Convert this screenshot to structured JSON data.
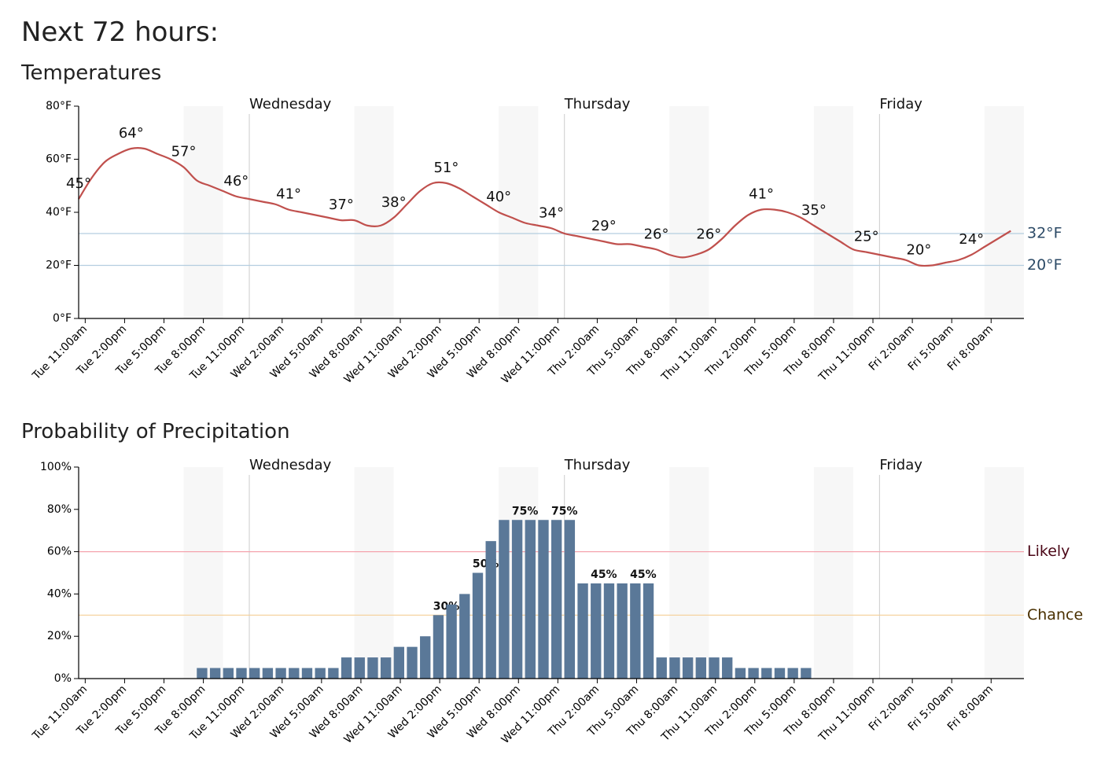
{
  "title": "Next 72 hours:",
  "chart_data": [
    {
      "type": "line",
      "title": "Temperatures",
      "xlim": [
        0,
        72
      ],
      "xticks": [
        {
          "value": 0,
          "label": "Tue 11:00am"
        },
        {
          "value": 3,
          "label": "Tue 2:00pm"
        },
        {
          "value": 6,
          "label": "Tue 5:00pm"
        },
        {
          "value": 9,
          "label": "Tue 8:00pm"
        },
        {
          "value": 12,
          "label": "Tue 11:00pm"
        },
        {
          "value": 15,
          "label": "Wed 2:00am"
        },
        {
          "value": 18,
          "label": "Wed 5:00am"
        },
        {
          "value": 21,
          "label": "Wed 8:00am"
        },
        {
          "value": 24,
          "label": "Wed 11:00am"
        },
        {
          "value": 27,
          "label": "Wed 2:00pm"
        },
        {
          "value": 30,
          "label": "Wed 5:00pm"
        },
        {
          "value": 33,
          "label": "Wed 8:00pm"
        },
        {
          "value": 36,
          "label": "Wed 11:00pm"
        },
        {
          "value": 39,
          "label": "Thu 2:00am"
        },
        {
          "value": 42,
          "label": "Thu 5:00am"
        },
        {
          "value": 45,
          "label": "Thu 8:00am"
        },
        {
          "value": 48,
          "label": "Thu 11:00am"
        },
        {
          "value": 51,
          "label": "Thu 2:00pm"
        },
        {
          "value": 54,
          "label": "Thu 5:00pm"
        },
        {
          "value": 57,
          "label": "Thu 8:00pm"
        },
        {
          "value": 60,
          "label": "Thu 11:00pm"
        },
        {
          "value": 63,
          "label": "Fri 2:00am"
        },
        {
          "value": 66,
          "label": "Fri 5:00am"
        },
        {
          "value": 69,
          "label": "Fri 8:00am"
        }
      ],
      "ylim": [
        0,
        80
      ],
      "yticks": [
        {
          "value": 0,
          "label": "0°F"
        },
        {
          "value": 20,
          "label": "20°F"
        },
        {
          "value": 40,
          "label": "40°F"
        },
        {
          "value": 60,
          "label": "60°F"
        },
        {
          "value": 80,
          "label": "80°F"
        }
      ],
      "days": [
        {
          "value": 13,
          "label": "Wednesday"
        },
        {
          "value": 37,
          "label": "Thursday"
        },
        {
          "value": 61,
          "label": "Friday"
        }
      ],
      "shaded": [
        [
          8,
          11
        ],
        [
          21,
          24
        ],
        [
          32,
          35
        ],
        [
          45,
          48
        ],
        [
          56,
          59
        ],
        [
          69,
          72
        ]
      ],
      "reference_lines": [
        {
          "value": 32,
          "label": "32°F",
          "color": "#b4cde0",
          "text_color": "#2c4a66"
        },
        {
          "value": 20,
          "label": "20°F",
          "color": "#b4cde0",
          "text_color": "#2c4a66"
        }
      ],
      "color": "#c0504d",
      "x": [
        0,
        1,
        2,
        3,
        4,
        5,
        6,
        7,
        8,
        9,
        10,
        11,
        12,
        13,
        14,
        15,
        16,
        17,
        18,
        19,
        20,
        21,
        22,
        23,
        24,
        25,
        26,
        27,
        28,
        29,
        30,
        31,
        32,
        33,
        34,
        35,
        36,
        37,
        38,
        39,
        40,
        41,
        42,
        43,
        44,
        45,
        46,
        47,
        48,
        49,
        50,
        51,
        52,
        53,
        54,
        55,
        56,
        57,
        58,
        59,
        60,
        61,
        62,
        63,
        64,
        65,
        66,
        67,
        68,
        69,
        70,
        71
      ],
      "values": [
        45,
        53,
        59,
        62,
        64,
        64,
        62,
        60,
        57,
        52,
        50,
        48,
        46,
        45,
        44,
        43,
        41,
        40,
        39,
        38,
        37,
        37,
        35,
        35,
        38,
        43,
        48,
        51,
        51,
        49,
        46,
        43,
        40,
        38,
        36,
        35,
        34,
        32,
        31,
        30,
        29,
        28,
        28,
        27,
        26,
        24,
        23,
        24,
        26,
        30,
        35,
        39,
        41,
        41,
        40,
        38,
        35,
        32,
        29,
        26,
        25,
        24,
        23,
        22,
        20,
        20,
        21,
        22,
        24,
        27,
        30,
        33
      ],
      "point_labels": {
        "x": [
          0,
          4,
          8,
          12,
          16,
          20,
          24,
          28,
          32,
          36,
          40,
          44,
          48,
          52,
          56,
          60,
          64,
          68
        ],
        "values": [
          45,
          64,
          57,
          46,
          41,
          37,
          38,
          51,
          40,
          34,
          29,
          26,
          26,
          41,
          35,
          25,
          20,
          24
        ],
        "value_labels": [
          "45°",
          "64°",
          "57°",
          "46°",
          "41°",
          "37°",
          "38°",
          "51°",
          "40°",
          "34°",
          "29°",
          "26°",
          "26°",
          "41°",
          "35°",
          "25°",
          "20°",
          "24°"
        ]
      }
    },
    {
      "type": "bar",
      "title": "Probability of Precipitation",
      "xlim": [
        0,
        72
      ],
      "xticks": [
        {
          "value": 0,
          "label": "Tue 11:00am"
        },
        {
          "value": 3,
          "label": "Tue 2:00pm"
        },
        {
          "value": 6,
          "label": "Tue 5:00pm"
        },
        {
          "value": 9,
          "label": "Tue 8:00pm"
        },
        {
          "value": 12,
          "label": "Tue 11:00pm"
        },
        {
          "value": 15,
          "label": "Wed 2:00am"
        },
        {
          "value": 18,
          "label": "Wed 5:00am"
        },
        {
          "value": 21,
          "label": "Wed 8:00am"
        },
        {
          "value": 24,
          "label": "Wed 11:00am"
        },
        {
          "value": 27,
          "label": "Wed 2:00pm"
        },
        {
          "value": 30,
          "label": "Wed 5:00pm"
        },
        {
          "value": 33,
          "label": "Wed 8:00pm"
        },
        {
          "value": 36,
          "label": "Wed 11:00pm"
        },
        {
          "value": 39,
          "label": "Thu 2:00am"
        },
        {
          "value": 42,
          "label": "Thu 5:00am"
        },
        {
          "value": 45,
          "label": "Thu 8:00am"
        },
        {
          "value": 48,
          "label": "Thu 11:00am"
        },
        {
          "value": 51,
          "label": "Thu 2:00pm"
        },
        {
          "value": 54,
          "label": "Thu 5:00pm"
        },
        {
          "value": 57,
          "label": "Thu 8:00pm"
        },
        {
          "value": 60,
          "label": "Thu 11:00pm"
        },
        {
          "value": 63,
          "label": "Fri 2:00am"
        },
        {
          "value": 66,
          "label": "Fri 5:00am"
        },
        {
          "value": 69,
          "label": "Fri 8:00am"
        }
      ],
      "ylim": [
        0,
        100
      ],
      "yticks": [
        {
          "value": 0,
          "label": "0%"
        },
        {
          "value": 20,
          "label": "20%"
        },
        {
          "value": 40,
          "label": "40%"
        },
        {
          "value": 60,
          "label": "60%"
        },
        {
          "value": 80,
          "label": "80%"
        },
        {
          "value": 100,
          "label": "100%"
        }
      ],
      "days": [
        {
          "value": 13,
          "label": "Wednesday"
        },
        {
          "value": 37,
          "label": "Thursday"
        },
        {
          "value": 61,
          "label": "Friday"
        }
      ],
      "shaded": [
        [
          8,
          11
        ],
        [
          21,
          24
        ],
        [
          32,
          35
        ],
        [
          45,
          48
        ],
        [
          56,
          59
        ],
        [
          69,
          72
        ]
      ],
      "reference_lines": [
        {
          "value": 60,
          "label": "Likely",
          "color": "#f5a3ad",
          "text_color": "#4a0616"
        },
        {
          "value": 30,
          "label": "Chance",
          "color": "#f5cf96",
          "text_color": "#4a3000"
        }
      ],
      "color": "#5a7898",
      "x": [
        0,
        1,
        2,
        3,
        4,
        5,
        6,
        7,
        8,
        9,
        10,
        11,
        12,
        13,
        14,
        15,
        16,
        17,
        18,
        19,
        20,
        21,
        22,
        23,
        24,
        25,
        26,
        27,
        28,
        29,
        30,
        31,
        32,
        33,
        34,
        35,
        36,
        37,
        38,
        39,
        40,
        41,
        42,
        43,
        44,
        45,
        46,
        47,
        48,
        49,
        50,
        51,
        52,
        53,
        54,
        55,
        56,
        57,
        58,
        59,
        60,
        61,
        62,
        63,
        64,
        65,
        66,
        67,
        68,
        69,
        70,
        71
      ],
      "values": [
        0,
        0,
        0,
        0,
        0,
        0,
        0,
        0,
        0,
        5,
        5,
        5,
        5,
        5,
        5,
        5,
        5,
        5,
        5,
        5,
        10,
        10,
        10,
        10,
        15,
        15,
        20,
        30,
        35,
        40,
        50,
        65,
        75,
        75,
        75,
        75,
        75,
        75,
        45,
        45,
        45,
        45,
        45,
        45,
        10,
        10,
        10,
        10,
        10,
        10,
        5,
        5,
        5,
        5,
        5,
        5,
        0,
        0,
        0,
        0,
        0,
        0,
        0,
        0,
        0,
        0,
        0,
        0,
        0,
        0,
        0,
        0
      ],
      "value_labels": [
        null,
        null,
        null,
        null,
        null,
        null,
        null,
        null,
        null,
        null,
        null,
        null,
        null,
        null,
        null,
        null,
        null,
        null,
        null,
        null,
        null,
        null,
        null,
        null,
        null,
        null,
        null,
        "30%",
        null,
        null,
        "50%",
        null,
        null,
        "75%",
        null,
        null,
        "75%",
        null,
        null,
        "45%",
        null,
        null,
        "45%",
        null,
        null,
        null,
        null,
        null,
        null,
        null,
        null,
        null,
        null,
        null,
        null,
        null,
        null,
        null,
        null,
        null,
        null,
        null,
        null,
        null,
        null,
        null,
        null,
        null,
        null,
        null,
        null,
        null
      ]
    }
  ]
}
